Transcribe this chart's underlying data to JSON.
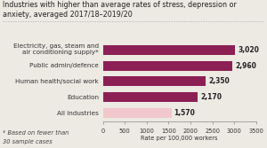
{
  "title_line1": "Industries with higher than average rates of stress, depression or",
  "title_line2": "anxiety, averaged 2017/18–2019/20",
  "categories": [
    "Electricity, gas, steam and\nair conditioning supply*",
    "Public admin/defence",
    "Human health/social work",
    "Education",
    "All industries"
  ],
  "values": [
    3020,
    2960,
    2350,
    2170,
    1570
  ],
  "bar_colors": [
    "#8C2055",
    "#8C2055",
    "#8C2055",
    "#8C2055",
    "#F2C8CC"
  ],
  "value_labels": [
    "3,020",
    "2,960",
    "2,350",
    "2,170",
    "1,570"
  ],
  "xlabel": "Rate per 100,000 workers",
  "xlim": [
    0,
    3500
  ],
  "xticks": [
    0,
    500,
    1000,
    1500,
    2000,
    2500,
    3000,
    3500
  ],
  "footnote_line1": "* Based on fewer than",
  "footnote_line2": "30 sample cases",
  "title_fontsize": 5.8,
  "label_fontsize": 5.2,
  "tick_fontsize": 4.8,
  "value_fontsize": 5.5,
  "footnote_fontsize": 4.8,
  "background_color": "#EDE9E3"
}
